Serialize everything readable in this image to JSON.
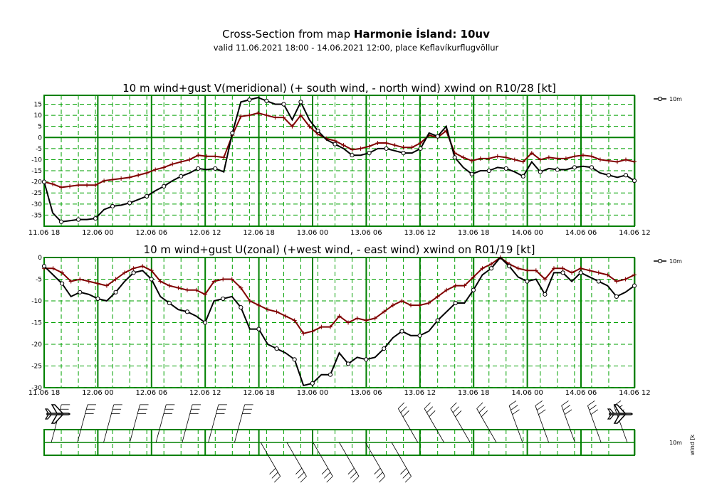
{
  "header": {
    "title_prefix": "Cross-Section from map ",
    "title_bold": "Harmonie Ísland: 10uv",
    "subtitle": "valid 11.06.2021 18:00 - 14.06.2021 12:00, place Keflavíkurflugvöllur"
  },
  "colors": {
    "wind": "#000000",
    "gust": "#800000",
    "grid": "#008000",
    "grid_dash": "#00a000"
  },
  "icons": [
    "airplane-icon",
    "airplane-icon"
  ],
  "chart_data": [
    {
      "type": "line",
      "title": "10 m wind+gust V(meridional) (+ south wind, - north wind) xwind on R10/28 [kt]",
      "legend": "10m",
      "legend_position": "top-right",
      "grid": true,
      "x_ticks": [
        "11.06 18",
        "12.06 00",
        "12.06 06",
        "12.06 12",
        "12.06 18",
        "13.06 00",
        "13.06 06",
        "13.06 12",
        "13.06 18",
        "14.06 00",
        "14.06 06",
        "14.06 12"
      ],
      "y_ticks": [
        15,
        10,
        5,
        0,
        -5,
        -10,
        -15,
        -20,
        -25,
        -30,
        -35
      ],
      "ylim": [
        -40,
        19
      ],
      "series": [
        {
          "name": "10m",
          "values": [
            -20,
            -34,
            -38,
            -37.5,
            -37,
            -37,
            -36.5,
            -32.5,
            -31,
            -30.5,
            -29.5,
            -28,
            -26.5,
            -24,
            -22,
            -19.5,
            -17.5,
            -16,
            -14,
            -14.5,
            -14,
            -15.5,
            2,
            16,
            17,
            18,
            16.5,
            15,
            15,
            8,
            16,
            8,
            3,
            -1,
            -3,
            -5,
            -8,
            -8,
            -7,
            -5,
            -5,
            -6,
            -7,
            -7,
            -5,
            2,
            0.5,
            5,
            -9,
            -13.5,
            -16.5,
            -15,
            -15,
            -13.5,
            -14,
            -15.5,
            -17.5,
            -11,
            -15.5,
            -14,
            -14.5,
            -14.5,
            -13.5,
            -13,
            -13.5,
            -16,
            -17,
            -18,
            -17,
            -19.5
          ]
        },
        {
          "name": "gust",
          "values": [
            -20,
            -21,
            -22.5,
            -22,
            -21.5,
            -21.5,
            -21.5,
            -19.5,
            -19,
            -18.5,
            -18,
            -17,
            -16,
            -14.5,
            -13.5,
            -12,
            -11,
            -10,
            -8,
            -8.5,
            -8.5,
            -9,
            1,
            9.5,
            10,
            11,
            10,
            9,
            9,
            5,
            10,
            5,
            1.5,
            -0.5,
            -1.5,
            -3.5,
            -5.5,
            -5,
            -4,
            -2.5,
            -2.5,
            -3.5,
            -4.5,
            -4.5,
            -2.5,
            1,
            0,
            3,
            -7,
            -9,
            -10.5,
            -9.5,
            -9.5,
            -8.5,
            -9,
            -10,
            -11,
            -7,
            -10,
            -9,
            -9.5,
            -9.5,
            -8.5,
            -8,
            -8.5,
            -10,
            -10.5,
            -11,
            -10,
            -11
          ]
        }
      ]
    },
    {
      "type": "line",
      "title": "10 m wind+gust U(zonal) (+west wind, - east wind) xwind on R01/19 [kt]",
      "legend": "10m",
      "legend_position": "top-right",
      "grid": true,
      "x_ticks": [
        "11.06 18",
        "12.06 00",
        "12.06 06",
        "12.06 12",
        "12.06 18",
        "13.06 00",
        "13.06 06",
        "13.06 12",
        "13.06 18",
        "14.06 00",
        "14.06 06",
        "14.06 12"
      ],
      "y_ticks": [
        0,
        -5,
        -10,
        -15,
        -20,
        -25,
        -30
      ],
      "ylim": [
        -30,
        0
      ],
      "series": [
        {
          "name": "10m",
          "values": [
            -2,
            -4,
            -6,
            -9,
            -8,
            -8.5,
            -9.5,
            -10,
            -8,
            -5.5,
            -3.5,
            -3,
            -5,
            -9,
            -10.5,
            -12,
            -12.5,
            -13.5,
            -15,
            -10,
            -9.5,
            -9,
            -11.5,
            -16.5,
            -16.5,
            -20,
            -21,
            -22,
            -23.5,
            -29.5,
            -29,
            -27,
            -27,
            -22,
            -24.5,
            -23,
            -23.5,
            -23,
            -21,
            -18.5,
            -17,
            -18,
            -18,
            -17,
            -14.5,
            -12.5,
            -10.5,
            -10.5,
            -7.5,
            -4,
            -2.5,
            0,
            -2,
            -4.5,
            -5.5,
            -5,
            -8.5,
            -3.5,
            -3.5,
            -5.5,
            -3.5,
            -4.5,
            -5.5,
            -6.5,
            -9,
            -8,
            -6.5
          ]
        },
        {
          "name": "gust",
          "values": [
            -2.5,
            -2.5,
            -3.5,
            -5.5,
            -5,
            -5.5,
            -6,
            -6.5,
            -5,
            -3.5,
            -2.5,
            -2,
            -3,
            -5.5,
            -6.5,
            -7,
            -7.5,
            -7.5,
            -8.5,
            -5.5,
            -5,
            -5,
            -7,
            -10,
            -11,
            -12,
            -12.5,
            -13.5,
            -14.5,
            -17.5,
            -17,
            -16,
            -16,
            -13.5,
            -15,
            -14,
            -14.5,
            -14,
            -12.5,
            -11,
            -10,
            -11,
            -11,
            -10.5,
            -9,
            -7.5,
            -6.5,
            -6.5,
            -4.5,
            -2.5,
            -1.5,
            0,
            -1.5,
            -2.5,
            -3,
            -3,
            -5,
            -2.5,
            -2.5,
            -3.5,
            -2.5,
            -3,
            -3.5,
            -4,
            -5.5,
            -5,
            -4
          ]
        }
      ]
    }
  ],
  "wind_panel": {
    "label_10m": "10m",
    "label_wind": "wind [k"
  }
}
